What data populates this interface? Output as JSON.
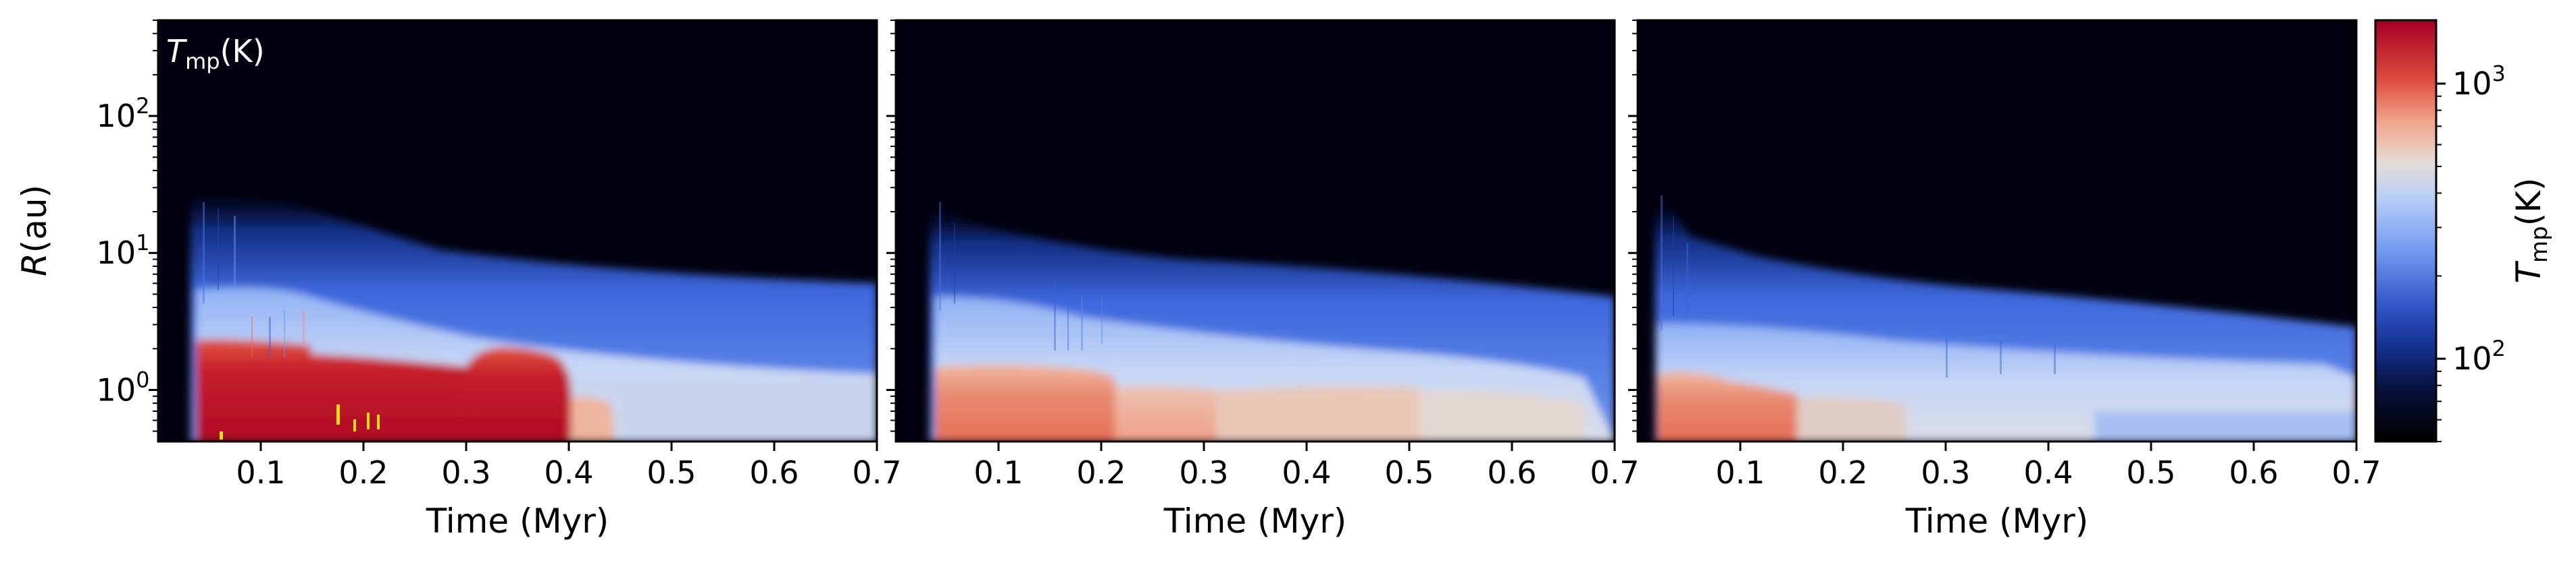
{
  "figure": {
    "panel_annotation_symbol": "T",
    "panel_annotation_subscript": "mp",
    "panel_annotation_unit": "(K)",
    "ylabel_symbol": "R",
    "ylabel_unit": "(au)",
    "colorbar_symbol": "T",
    "colorbar_subscript": "mp",
    "colorbar_unit": "(K)"
  },
  "colors": {
    "colormap": "coolwarm-like",
    "background": "#01010f",
    "hot": "#a50026",
    "warm": "#e0503f",
    "mid": "#d9dce8",
    "cool": "#8cb1f5",
    "cold": "#3b5fd8",
    "deep": "#0f1a66",
    "hotspot": "#f4e200"
  },
  "chart_data": [
    {
      "type": "heatmap",
      "xlabel": "Time (Myr)",
      "ylabel": "R(au)",
      "x_range": [
        0.0,
        0.7
      ],
      "x_ticks": [
        0.1,
        0.2,
        0.3,
        0.4,
        0.5,
        0.6,
        0.7
      ],
      "x_tick_labels": [
        "0.1",
        "0.2",
        "0.3",
        "0.4",
        "0.5",
        "0.6",
        "0.7"
      ],
      "y_scale": "log",
      "y_range": [
        0.42,
        500
      ],
      "y_ticks": [
        1,
        10,
        100
      ],
      "y_tick_labels": [
        "10^0",
        "10^1",
        "10^2"
      ],
      "data_start_time": 0.045,
      "annotation": "T_mp(K)",
      "regions": [
        {
          "t0": 0.045,
          "t1": 0.7,
          "r_outer_start": 20,
          "r_outer_end": 4,
          "T": 120
        },
        {
          "t0": 0.045,
          "t1": 0.7,
          "r_outer_start": 12,
          "r_outer_end": 3,
          "T": 250
        },
        {
          "t0": 0.045,
          "t1": 0.7,
          "r_outer_start": 4,
          "r_outer_end": 1.5,
          "T": 450
        },
        {
          "t0": 0.045,
          "t1": 0.16,
          "r_outer": 2.2,
          "T": 1300
        },
        {
          "t0": 0.16,
          "t1": 0.31,
          "r_outer": 1.4,
          "T": 1300
        },
        {
          "t0": 0.31,
          "t1": 0.4,
          "r_outer": 1.55,
          "T": 1000
        },
        {
          "t0": 0.4,
          "t1": 0.45,
          "r_outer": 0.9,
          "T": 600
        }
      ]
    },
    {
      "type": "heatmap",
      "xlabel": "Time (Myr)",
      "x_range": [
        0.0,
        0.7
      ],
      "x_ticks": [
        0.1,
        0.2,
        0.3,
        0.4,
        0.5,
        0.6,
        0.7
      ],
      "x_tick_labels": [
        "0.1",
        "0.2",
        "0.3",
        "0.4",
        "0.5",
        "0.6",
        "0.7"
      ],
      "y_scale": "log",
      "y_range": [
        0.42,
        500
      ],
      "data_start_time": 0.04,
      "regions": [
        {
          "t0": 0.04,
          "t1": 0.7,
          "r_outer_start": 12,
          "r_outer_end": 4,
          "T": 120
        },
        {
          "t0": 0.04,
          "t1": 0.7,
          "r_outer_start": 7,
          "r_outer_end": 2.5,
          "T": 250
        },
        {
          "t0": 0.04,
          "t1": 0.7,
          "r_outer_start": 2.5,
          "r_outer_end": 1.2,
          "T": 420
        },
        {
          "t0": 0.04,
          "t1": 0.26,
          "r_outer": 1.3,
          "T": 800
        },
        {
          "t0": 0.26,
          "t1": 0.5,
          "r_outer": 0.95,
          "T": 600
        },
        {
          "t0": 0.5,
          "t1": 0.68,
          "r_outer": 0.8,
          "T": 500
        }
      ]
    },
    {
      "type": "heatmap",
      "xlabel": "Time (Myr)",
      "x_range": [
        0.0,
        0.7
      ],
      "x_ticks": [
        0.1,
        0.2,
        0.3,
        0.4,
        0.5,
        0.6,
        0.7
      ],
      "x_tick_labels": [
        "0.1",
        "0.2",
        "0.3",
        "0.4",
        "0.5",
        "0.6",
        "0.7"
      ],
      "y_scale": "log",
      "y_range": [
        0.42,
        500
      ],
      "data_start_time": 0.02,
      "regions": [
        {
          "t0": 0.02,
          "t1": 0.7,
          "r_outer_start": 10,
          "r_outer_end": 3.5,
          "T": 120
        },
        {
          "t0": 0.02,
          "t1": 0.7,
          "r_outer_start": 5,
          "r_outer_end": 2,
          "T": 250
        },
        {
          "t0": 0.02,
          "t1": 0.7,
          "r_outer_start": 2,
          "r_outer_end": 1,
          "T": 400
        },
        {
          "t0": 0.02,
          "t1": 0.1,
          "r_outer": 1.1,
          "T": 800
        }
      ]
    }
  ],
  "colorbar": {
    "scale": "log",
    "range": [
      50,
      1700
    ],
    "ticks": [
      100,
      1000
    ],
    "tick_labels": [
      "10^2",
      "10^3"
    ],
    "label": "T_mp(K)"
  }
}
